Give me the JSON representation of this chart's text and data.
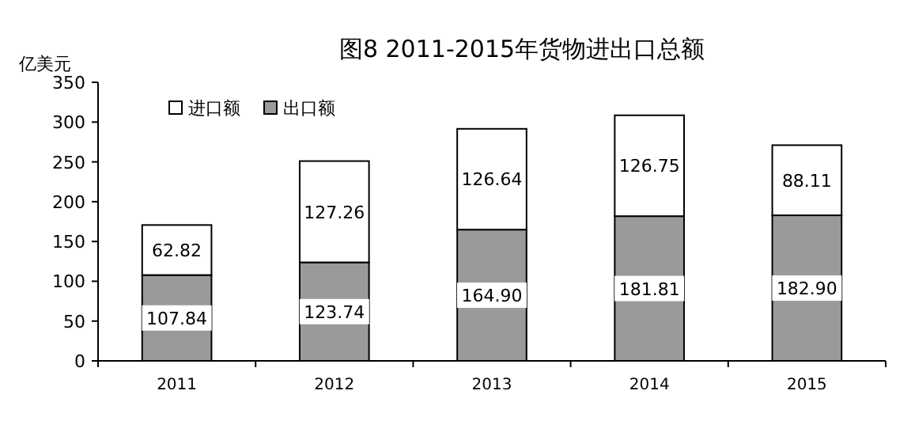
{
  "chart_data": {
    "type": "bar",
    "title": "图8 2011-2015年货物进出口总额",
    "ylabel": "亿美元",
    "categories": [
      "2011",
      "2012",
      "2013",
      "2014",
      "2015"
    ],
    "stacked": true,
    "series": [
      {
        "name": "出口额",
        "color": "#9a9a9a",
        "values": [
          107.84,
          123.74,
          164.9,
          181.81,
          182.9
        ],
        "value_labels": [
          "107.84",
          "123.74",
          "164.90",
          "181.81",
          "182.90"
        ]
      },
      {
        "name": "进口额",
        "color": "#ffffff",
        "values": [
          62.82,
          127.26,
          126.64,
          126.75,
          88.11
        ],
        "value_labels": [
          "62.82",
          "127.26",
          "126.64",
          "126.75",
          "88.11"
        ]
      }
    ],
    "ylim": [
      0,
      350
    ],
    "yticks": [
      0,
      50,
      100,
      150,
      200,
      250,
      300,
      350
    ],
    "legend": "top left",
    "grid": false
  }
}
